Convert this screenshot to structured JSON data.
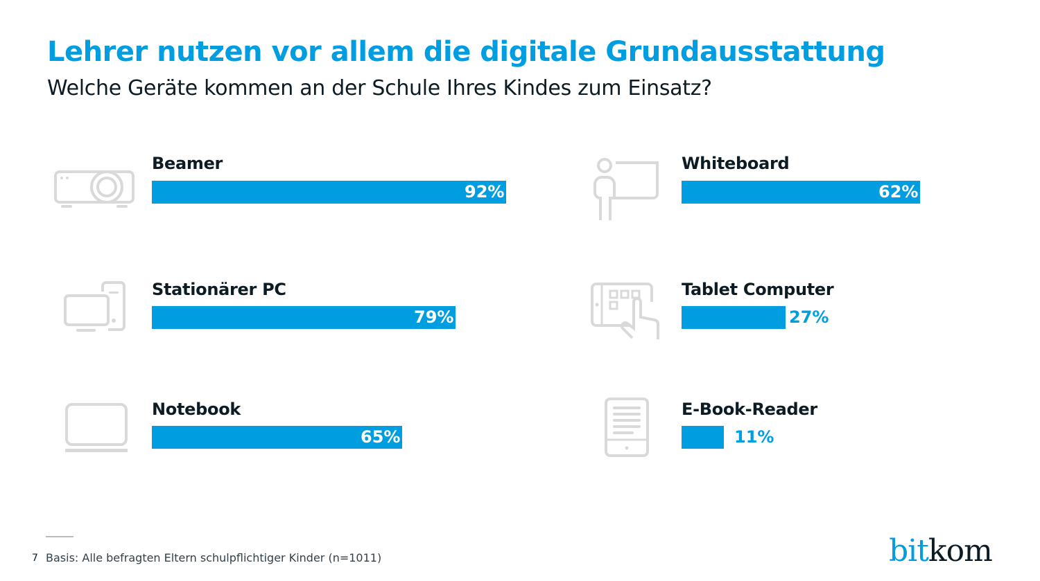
{
  "header": {
    "title": "Lehrer nutzen vor allem die digitale Grundausstattung",
    "subtitle": "Welche Geräte kommen an der Schule Ihres Kindes zum Einsatz?"
  },
  "chart_data": {
    "type": "bar",
    "orientation": "horizontal",
    "title": "Lehrer nutzen vor allem die digitale Grundausstattung",
    "subtitle": "Welche Geräte kommen an der Schule Ihres Kindes zum Einsatz?",
    "unit": "%",
    "xlim": [
      0,
      100
    ],
    "grid": false,
    "legend": "none",
    "bar_color": "#009de0",
    "categories": [
      "Beamer",
      "Stationärer PC",
      "Notebook",
      "Whiteboard",
      "Tablet Computer",
      "E-Book-Reader"
    ],
    "values": [
      92,
      79,
      65,
      62,
      27,
      11
    ],
    "labels": [
      "92%",
      "79%",
      "65%",
      "62%",
      "27%",
      "11%"
    ],
    "icons": [
      "projector-icon",
      "desktop-pc-icon",
      "laptop-icon",
      "whiteboard-teacher-icon",
      "tablet-touch-icon",
      "ebook-reader-icon"
    ]
  },
  "footer": {
    "page_number": "7",
    "note": "Basis: Alle befragten Eltern schulpflichtiger Kinder (n=1011)",
    "logo_part1": "bit",
    "logo_part2": "kom"
  },
  "colors": {
    "accent": "#009de0",
    "text_dark": "#0d1b24",
    "icon_gray": "#d9d9d9"
  }
}
